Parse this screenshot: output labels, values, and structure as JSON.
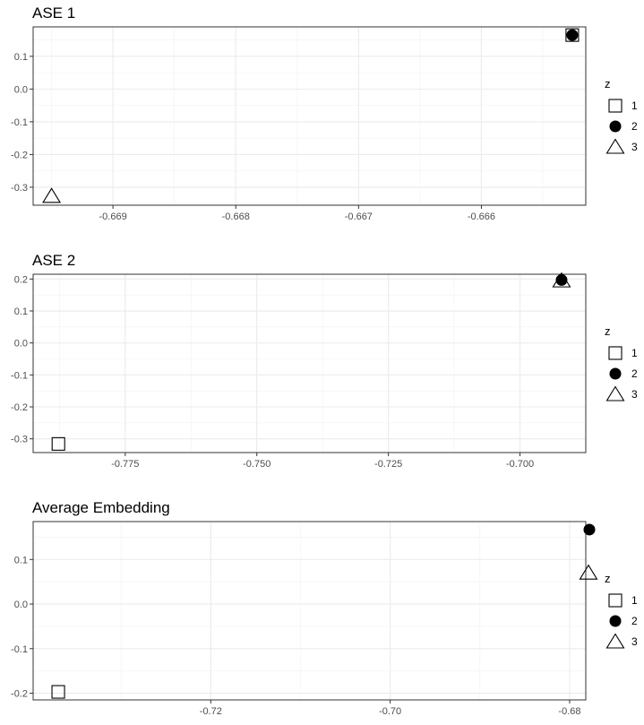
{
  "chart_data": [
    {
      "type": "scatter",
      "title": "ASE 1",
      "xlim": [
        -0.66965,
        -0.66515
      ],
      "ylim": [
        -0.355,
        0.19
      ],
      "xticks": [
        -0.669,
        -0.668,
        -0.667,
        -0.666
      ],
      "xtick_labels": [
        "-0.669",
        "-0.668",
        "-0.667",
        "-0.666"
      ],
      "yticks": [
        0.1,
        0.0,
        -0.1,
        -0.2,
        -0.3
      ],
      "ytick_labels": [
        "0.1",
        "0.0",
        "-0.1",
        "-0.2",
        "-0.3"
      ],
      "grid": true,
      "legend": {
        "title": "z",
        "position": "right",
        "entries": [
          "1",
          "2",
          "3"
        ]
      },
      "series": [
        {
          "name": "1",
          "shape": "square-open",
          "points": [
            {
              "x": -0.66526,
              "y": 0.165
            }
          ]
        },
        {
          "name": "2",
          "shape": "circle-filled",
          "points": [
            {
              "x": -0.66526,
              "y": 0.165
            }
          ]
        },
        {
          "name": "3",
          "shape": "triangle-open",
          "points": [
            {
              "x": -0.6695,
              "y": -0.327
            }
          ]
        }
      ]
    },
    {
      "type": "scatter",
      "title": "ASE 2",
      "xlim": [
        -0.7925,
        -0.6875
      ],
      "ylim": [
        -0.343,
        0.215
      ],
      "xticks": [
        -0.775,
        -0.75,
        -0.725,
        -0.7
      ],
      "xtick_labels": [
        "-0.775",
        "-0.750",
        "-0.725",
        "-0.700"
      ],
      "yticks": [
        0.2,
        0.1,
        0.0,
        -0.1,
        -0.2,
        -0.3
      ],
      "ytick_labels": [
        "0.2",
        "0.1",
        "0.0",
        "-0.1",
        "-0.2",
        "-0.3"
      ],
      "grid": true,
      "legend": {
        "title": "z",
        "position": "right",
        "entries": [
          "1",
          "2",
          "3"
        ]
      },
      "series": [
        {
          "name": "1",
          "shape": "square-open",
          "points": [
            {
              "x": -0.7877,
              "y": -0.316
            }
          ]
        },
        {
          "name": "2",
          "shape": "circle-filled",
          "points": [
            {
              "x": -0.6921,
              "y": 0.197
            }
          ]
        },
        {
          "name": "3",
          "shape": "triangle-open",
          "points": [
            {
              "x": -0.6921,
              "y": 0.195
            }
          ]
        }
      ]
    },
    {
      "type": "scatter",
      "title": "Average Embedding",
      "xlim": [
        -0.7398,
        -0.6782
      ],
      "ylim": [
        -0.215,
        0.185
      ],
      "xticks": [
        -0.72,
        -0.7,
        -0.68
      ],
      "xtick_labels": [
        "-0.72",
        "-0.70",
        "-0.68"
      ],
      "yticks": [
        0.1,
        0.0,
        -0.1,
        -0.2
      ],
      "ytick_labels": [
        "0.1",
        "0.0",
        "-0.1",
        "-0.2"
      ],
      "grid": true,
      "legend": {
        "title": "z",
        "position": "right",
        "entries": [
          "1",
          "2",
          "3"
        ]
      },
      "series": [
        {
          "name": "1",
          "shape": "square-open",
          "points": [
            {
              "x": -0.737,
              "y": -0.197
            }
          ]
        },
        {
          "name": "2",
          "shape": "circle-filled",
          "points": [
            {
              "x": -0.6778,
              "y": 0.167
            }
          ]
        },
        {
          "name": "3",
          "shape": "triangle-open",
          "points": [
            {
              "x": -0.6779,
              "y": 0.07
            }
          ]
        }
      ]
    }
  ]
}
